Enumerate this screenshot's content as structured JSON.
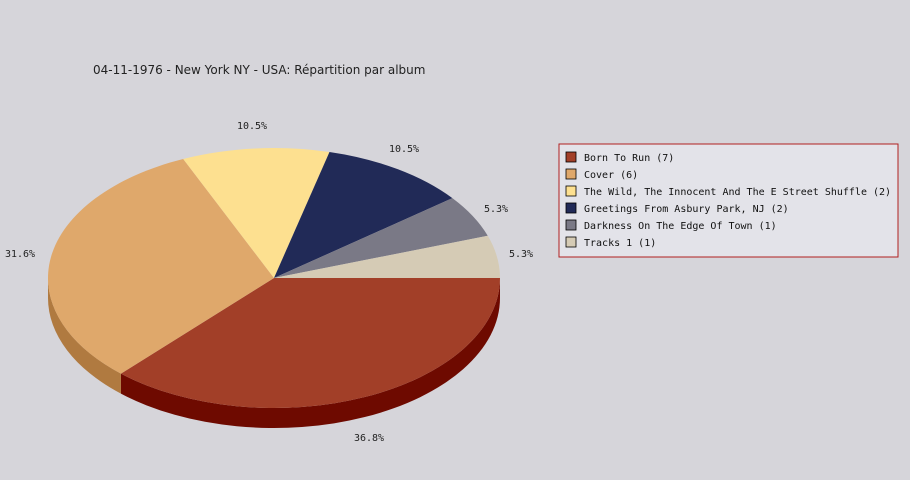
{
  "chart_data": {
    "type": "pie",
    "title": "04-11-1976 - New York NY - USA:  Répartition par album",
    "slices": [
      {
        "name": "Born To Run",
        "value": 7,
        "percent_label": "36.8%",
        "legend_label": "Born To Run (7)",
        "color": "#a23f28",
        "side_color": "#6e0a00"
      },
      {
        "name": "Cover",
        "value": 6,
        "percent_label": "31.6%",
        "legend_label": "Cover (6)",
        "color": "#dfa86b",
        "side_color": "#b07a40"
      },
      {
        "name": "The Wild, The Innocent And The E Street Shuffle",
        "value": 2,
        "percent_label": "10.5%",
        "legend_label": "The Wild, The Innocent And The E Street Shuffle (2)",
        "color": "#fde090",
        "side_color": "#c8aa5a"
      },
      {
        "name": "Greetings From Asbury Park, NJ",
        "value": 2,
        "percent_label": "10.5%",
        "legend_label": "Greetings From Asbury Park, NJ (2)",
        "color": "#212a57",
        "side_color": "#10163a"
      },
      {
        "name": "Darkness On The Edge Of Town",
        "value": 1,
        "percent_label": "5.3%",
        "legend_label": "Darkness On The Edge Of Town (1)",
        "color": "#7a7986",
        "side_color": "#55545e"
      },
      {
        "name": "Tracks 1",
        "value": 1,
        "percent_label": "5.3%",
        "legend_label": "Tracks 1 (1)",
        "color": "#d5cbb5",
        "side_color": "#a89e88"
      }
    ],
    "legend_placement": "right"
  },
  "colors": {
    "background": "#d6d5da",
    "legend_border": "#b02020",
    "legend_background": "#e3e3e9"
  }
}
